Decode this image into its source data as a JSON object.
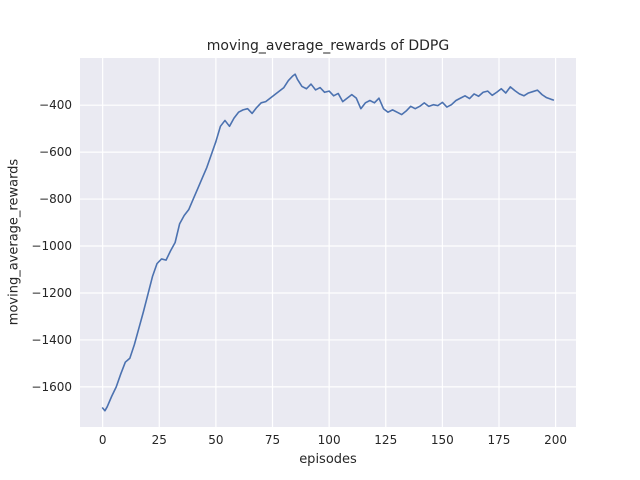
{
  "figure": {
    "title": "moving_average_rewards of DDPG",
    "xlabel": "episodes",
    "ylabel": "moving_average_rewards"
  },
  "chart_data": {
    "type": "line",
    "title": "moving_average_rewards of DDPG",
    "xlabel": "episodes",
    "ylabel": "moving_average_rewards",
    "xlim": [
      -10,
      209
    ],
    "ylim": [
      -1771,
      -199
    ],
    "xticks": [
      0,
      25,
      50,
      75,
      100,
      125,
      150,
      175,
      200
    ],
    "yticks": [
      -1600,
      -1400,
      -1200,
      -1000,
      -800,
      -600,
      -400
    ],
    "grid": true,
    "legend": "none",
    "line_color": "#4c72b0",
    "plot_bg_color": "#eaeaf2",
    "grid_color": "#ffffff",
    "x": [
      0,
      1,
      2,
      4,
      6,
      8,
      10,
      12,
      14,
      16,
      18,
      20,
      22,
      24,
      26,
      28,
      30,
      32,
      34,
      36,
      38,
      40,
      42,
      44,
      46,
      48,
      50,
      52,
      54,
      56,
      58,
      60,
      62,
      64,
      66,
      68,
      70,
      72,
      74,
      76,
      78,
      80,
      82,
      84,
      85,
      86,
      88,
      90,
      92,
      94,
      96,
      98,
      100,
      102,
      104,
      106,
      108,
      110,
      112,
      114,
      116,
      118,
      120,
      122,
      124,
      126,
      128,
      130,
      132,
      134,
      136,
      138,
      140,
      142,
      144,
      146,
      148,
      150,
      152,
      154,
      156,
      158,
      160,
      162,
      164,
      166,
      168,
      170,
      172,
      174,
      176,
      178,
      180,
      182,
      184,
      186,
      188,
      190,
      192,
      194,
      196,
      198,
      199
    ],
    "y": [
      -1690,
      -1702,
      -1685,
      -1640,
      -1600,
      -1545,
      -1495,
      -1478,
      -1420,
      -1350,
      -1280,
      -1205,
      -1130,
      -1075,
      -1055,
      -1060,
      -1020,
      -985,
      -905,
      -870,
      -845,
      -800,
      -755,
      -710,
      -665,
      -610,
      -555,
      -490,
      -465,
      -490,
      -455,
      -430,
      -420,
      -415,
      -435,
      -410,
      -390,
      -385,
      -370,
      -355,
      -340,
      -325,
      -295,
      -275,
      -268,
      -290,
      -320,
      -330,
      -310,
      -335,
      -325,
      -345,
      -340,
      -360,
      -350,
      -385,
      -370,
      -355,
      -370,
      -415,
      -390,
      -380,
      -390,
      -370,
      -415,
      -430,
      -420,
      -430,
      -440,
      -425,
      -405,
      -415,
      -405,
      -390,
      -405,
      -398,
      -402,
      -388,
      -408,
      -398,
      -380,
      -370,
      -360,
      -372,
      -352,
      -362,
      -345,
      -340,
      -358,
      -345,
      -330,
      -348,
      -322,
      -338,
      -352,
      -360,
      -348,
      -342,
      -336,
      -355,
      -368,
      -375,
      -378
    ]
  }
}
